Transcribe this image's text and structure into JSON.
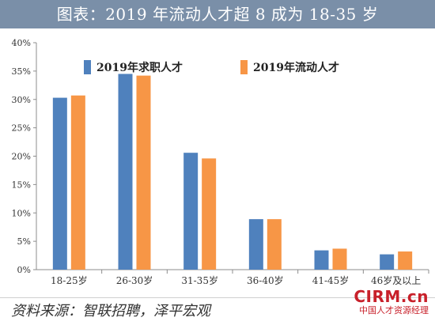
{
  "title": "图表：2019 年流动人才超 8 成为 18-35 岁",
  "source": "资料来源：智联招聘，泽平宏观",
  "watermark": {
    "main": "CIRM.cn",
    "sub": "中国人才资源经理"
  },
  "colors": {
    "title_bar": "#7a8fa8",
    "series_1": "#4f81bd",
    "series_2": "#f79646",
    "watermark": "#c8202a"
  },
  "chart_data": {
    "type": "bar",
    "categories": [
      "18-25岁",
      "26-30岁",
      "31-35岁",
      "36-40岁",
      "41-45岁",
      "46岁及以上"
    ],
    "series": [
      {
        "name": "2019年求职人才",
        "values": [
          30.3,
          34.5,
          20.6,
          8.9,
          3.4,
          2.7
        ]
      },
      {
        "name": "2019年流动人才",
        "values": [
          30.7,
          34.2,
          19.6,
          8.9,
          3.7,
          3.2
        ]
      }
    ],
    "ylim": [
      0,
      40
    ],
    "yticks": [
      "0%",
      "5%",
      "10%",
      "15%",
      "20%",
      "25%",
      "30%",
      "35%",
      "40%"
    ],
    "legend_position": "top",
    "grid": false
  }
}
